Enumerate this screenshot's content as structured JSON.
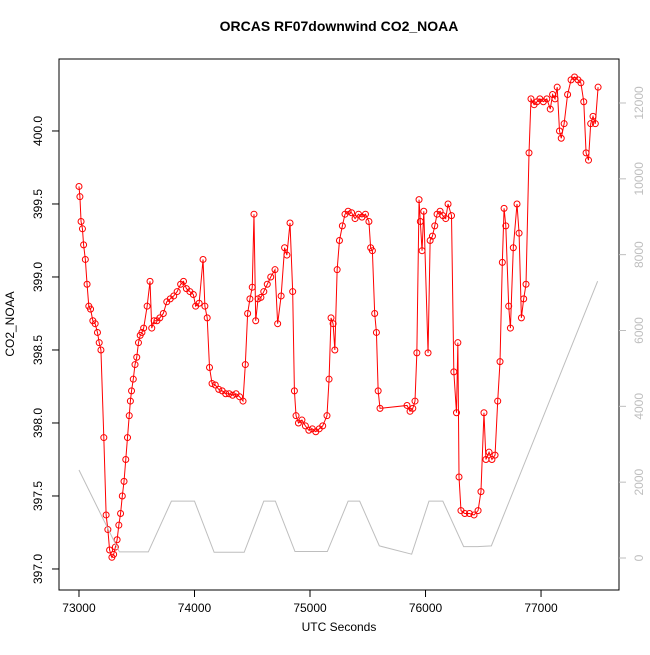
{
  "chart_data": {
    "type": "line",
    "title": "ORCAS RF07downwind CO2_NOAA",
    "xlabel": "UTC Seconds",
    "ylabel": "CO2_NOAA",
    "xlim": [
      72827,
      77675
    ],
    "ylim": [
      396.856,
      400.493
    ],
    "y2lim": [
      -844,
      13160
    ],
    "xticks": [
      73000,
      74000,
      75000,
      76000,
      77000
    ],
    "yticks": [
      {
        "value": 397,
        "label": "397.0"
      },
      397.5,
      {
        "value": 398,
        "label": "398.0"
      },
      398.5,
      {
        "value": 399,
        "label": "399.0"
      },
      399.5,
      {
        "value": 400,
        "label": "400.0"
      }
    ],
    "y2ticks": [
      0,
      2000,
      4000,
      6000,
      8000,
      10000,
      12000
    ],
    "series": [
      {
        "color": "#ff0000",
        "marker": "circle",
        "x": [
          73000,
          73008,
          73018,
          73030,
          73040,
          73055,
          73070,
          73085,
          73100,
          73120,
          73140,
          73160,
          73175,
          73190,
          73215,
          73235,
          73250,
          73265,
          73285,
          73300,
          73315,
          73330,
          73345,
          73360,
          73375,
          73390,
          73405,
          73420,
          73435,
          73445,
          73455,
          73470,
          73485,
          73500,
          73515,
          73530,
          73545,
          73560,
          73590,
          73615,
          73630,
          73650,
          73675,
          73700,
          73730,
          73760,
          73790,
          73820,
          73850,
          73880,
          73905,
          73930,
          73960,
          73990,
          74010,
          74040,
          74074,
          74090,
          74110,
          74130,
          74152,
          74180,
          74210,
          74240,
          74270,
          74300,
          74330,
          74360,
          74390,
          74420,
          74440,
          74460,
          74480,
          74500,
          74515,
          74530,
          74550,
          74575,
          74600,
          74630,
          74660,
          74697,
          74720,
          74750,
          74780,
          74800,
          74827,
          74850,
          74865,
          74879,
          74900,
          74930,
          74960,
          74990,
          75020,
          75050,
          75080,
          75110,
          75147,
          75165,
          75182,
          75200,
          75215,
          75235,
          75255,
          75280,
          75303,
          75330,
          75360,
          75390,
          75420,
          75450,
          75480,
          75510,
          75525,
          75540,
          75560,
          75575,
          75590,
          75606,
          75840,
          75866,
          75890,
          75909,
          75925,
          75944,
          75955,
          75970,
          75985,
          76022,
          76040,
          76060,
          76080,
          76100,
          76126,
          76150,
          76175,
          76195,
          76225,
          76245,
          76268,
          76280,
          76290,
          76307,
          76340,
          76380,
          76420,
          76455,
          76480,
          76506,
          76523,
          76550,
          76575,
          76602,
          76625,
          76645,
          76665,
          76680,
          76695,
          76720,
          76735,
          76760,
          76792,
          76810,
          76830,
          76850,
          76870,
          76896,
          76913,
          76940,
          76965,
          76990,
          77020,
          77050,
          77080,
          77100,
          77121,
          77140,
          77160,
          77175,
          77200,
          77230,
          77260,
          77290,
          77320,
          77345,
          77370,
          77390,
          77411,
          77430,
          77450,
          77470,
          77494
        ],
        "values": [
          399.62,
          399.55,
          399.38,
          399.33,
          399.22,
          399.12,
          398.95,
          398.8,
          398.78,
          398.7,
          398.68,
          398.62,
          398.55,
          398.5,
          397.9,
          397.37,
          397.27,
          397.13,
          397.08,
          397.1,
          397.15,
          397.2,
          397.3,
          397.38,
          397.5,
          397.6,
          397.75,
          397.9,
          398.05,
          398.15,
          398.22,
          398.3,
          398.4,
          398.45,
          398.55,
          398.6,
          398.62,
          398.65,
          398.8,
          398.97,
          398.65,
          398.7,
          398.7,
          398.72,
          398.75,
          398.83,
          398.85,
          398.87,
          398.9,
          398.95,
          398.97,
          398.92,
          398.9,
          398.88,
          398.8,
          398.82,
          399.12,
          398.8,
          398.72,
          398.38,
          398.27,
          398.26,
          398.23,
          398.22,
          398.2,
          398.2,
          398.19,
          398.2,
          398.18,
          398.15,
          398.4,
          398.75,
          398.85,
          398.93,
          399.43,
          398.7,
          398.85,
          398.86,
          398.9,
          398.95,
          399,
          399.05,
          398.68,
          398.87,
          399.2,
          399.15,
          399.37,
          398.9,
          398.22,
          398.05,
          398,
          398.02,
          397.98,
          397.95,
          397.96,
          397.94,
          397.96,
          397.98,
          398.05,
          398.3,
          398.72,
          398.68,
          398.5,
          399.05,
          399.25,
          399.35,
          399.43,
          399.45,
          399.44,
          399.4,
          399.43,
          399.41,
          399.43,
          399.38,
          399.2,
          399.18,
          398.75,
          398.62,
          398.22,
          398.1,
          398.12,
          398.08,
          398.1,
          398.15,
          398.48,
          399.53,
          399.38,
          399.18,
          399.45,
          398.48,
          399.25,
          399.28,
          399.35,
          399.43,
          399.45,
          399.42,
          399.4,
          399.5,
          399.42,
          398.35,
          398.07,
          398.55,
          397.63,
          397.4,
          397.38,
          397.38,
          397.37,
          397.4,
          397.53,
          398.07,
          397.75,
          397.8,
          397.75,
          397.78,
          398.15,
          398.42,
          399.1,
          399.47,
          399.35,
          398.8,
          398.65,
          399.2,
          399.5,
          399.3,
          398.72,
          398.85,
          398.95,
          399.85,
          400.22,
          400.18,
          400.2,
          400.22,
          400.2,
          400.22,
          400.15,
          400.25,
          400.22,
          400.3,
          400,
          399.95,
          400.05,
          400.25,
          400.35,
          400.37,
          400.35,
          400.33,
          400.2,
          399.85,
          399.8,
          400.05,
          400.1,
          400.05,
          400.3
        ]
      },
      {
        "color": "#bebebe",
        "axis": "y2",
        "x": [
          73000,
          73350,
          73600,
          73800,
          74000,
          74170,
          74430,
          74600,
          74700,
          74870,
          75150,
          75330,
          75430,
          75600,
          75880,
          76030,
          76150,
          76330,
          76450,
          76570,
          77490
        ],
        "values": [
          2320,
          160,
          160,
          1500,
          1500,
          150,
          150,
          1500,
          1500,
          170,
          170,
          1500,
          1500,
          320,
          100,
          1500,
          1500,
          300,
          300,
          320,
          7300
        ]
      }
    ]
  }
}
